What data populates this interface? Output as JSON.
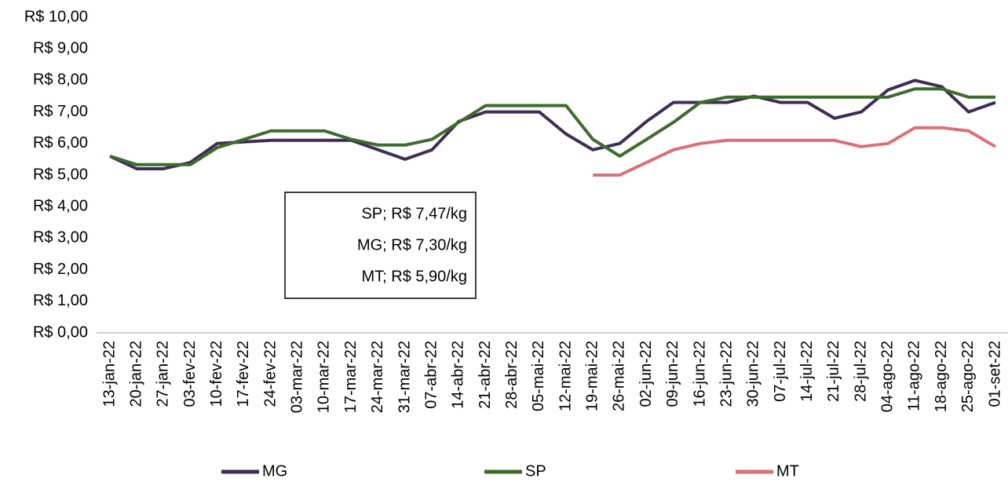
{
  "chart_data": {
    "type": "line",
    "categories": [
      "13-jan-22",
      "20-jan-22",
      "27-jan-22",
      "03-fev-22",
      "10-fev-22",
      "17-fev-22",
      "24-fev-22",
      "03-mar-22",
      "10-mar-22",
      "17-mar-22",
      "24-mar-22",
      "31-mar-22",
      "07-abr-22",
      "14-abr-22",
      "21-abr-22",
      "28-abr-22",
      "05-mai-22",
      "12-mai-22",
      "19-mai-22",
      "26-mai-22",
      "02-jun-22",
      "09-jun-22",
      "16-jun-22",
      "23-jun-22",
      "30-jun-22",
      "07-jul-22",
      "14-jul-22",
      "21-jul-22",
      "28-jul-22",
      "04-ago-22",
      "11-ago-22",
      "18-ago-22",
      "25-ago-22",
      "01-set-22"
    ],
    "series": [
      {
        "name": "MG",
        "color": "#3f2d55",
        "values": [
          5.6,
          5.2,
          5.2,
          5.4,
          6.0,
          6.05,
          6.1,
          6.1,
          6.1,
          6.1,
          5.8,
          5.5,
          5.8,
          6.7,
          7.0,
          7.0,
          7.0,
          6.3,
          5.8,
          6.0,
          6.7,
          7.3,
          7.3,
          7.3,
          7.5,
          7.3,
          7.3,
          6.8,
          7.0,
          7.7,
          8.0,
          7.8,
          7.0,
          7.3
        ]
      },
      {
        "name": "SP",
        "color": "#3e6b2e",
        "values": [
          5.6,
          5.33,
          5.33,
          5.33,
          5.87,
          6.13,
          6.4,
          6.4,
          6.4,
          6.13,
          5.95,
          5.95,
          6.13,
          6.67,
          7.2,
          7.2,
          7.2,
          7.2,
          6.13,
          5.6,
          6.13,
          6.67,
          7.3,
          7.47,
          7.47,
          7.47,
          7.47,
          7.47,
          7.47,
          7.47,
          7.73,
          7.73,
          7.47,
          7.47
        ]
      },
      {
        "name": "MT",
        "color": "#d9707a",
        "values": [
          null,
          null,
          null,
          null,
          null,
          null,
          null,
          null,
          null,
          null,
          null,
          null,
          null,
          null,
          null,
          null,
          null,
          null,
          5.0,
          5.0,
          5.4,
          5.8,
          6.0,
          6.1,
          6.1,
          6.1,
          6.1,
          6.1,
          5.9,
          6.0,
          6.5,
          6.5,
          6.4,
          5.9
        ]
      }
    ],
    "ylim": [
      0,
      10
    ],
    "yticks": [
      {
        "value": 0,
        "label": "R$ 0,00"
      },
      {
        "value": 1,
        "label": "R$ 1,00"
      },
      {
        "value": 2,
        "label": "R$ 2,00"
      },
      {
        "value": 3,
        "label": "R$ 3,00"
      },
      {
        "value": 4,
        "label": "R$ 4,00"
      },
      {
        "value": 5,
        "label": "R$ 5,00"
      },
      {
        "value": 6,
        "label": "R$ 6,00"
      },
      {
        "value": 7,
        "label": "R$ 7,00"
      },
      {
        "value": 8,
        "label": "R$ 8,00"
      },
      {
        "value": 9,
        "label": "R$ 9,00"
      },
      {
        "value": 10,
        "label": "R$ 10,00"
      }
    ],
    "annotations": [
      "SP; R$ 7,47/kg",
      "MG; R$ 7,30/kg",
      "MT; R$ 5,90/kg"
    ],
    "legend": "bottom"
  }
}
